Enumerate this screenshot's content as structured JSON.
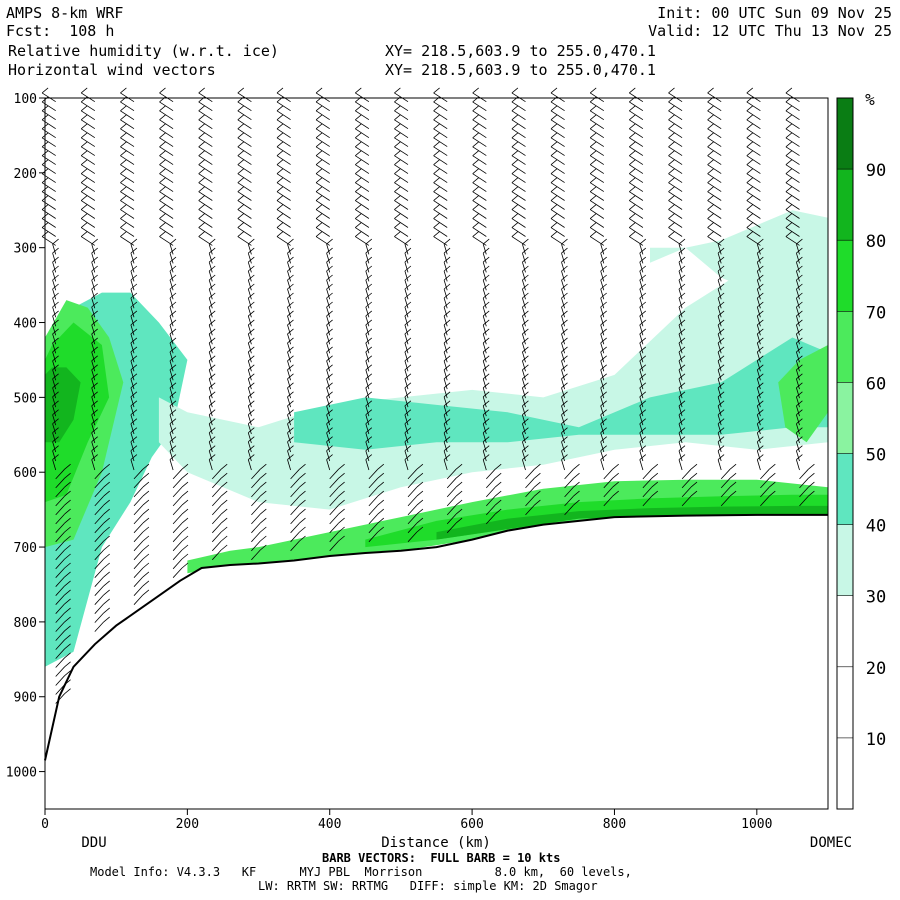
{
  "header": {
    "model": "AMPS 8-km WRF",
    "fcst": "Fcst:  108 h",
    "init": "Init: 00 UTC Sun 09 Nov 25",
    "valid": "Valid: 12 UTC Thu 13 Nov 25",
    "field1": "Relative humidity (w.r.t. ice)",
    "field2": "Horizontal wind vectors",
    "xy1": "XY= 218.5,603.9 to 255.0,470.1",
    "xy2": "XY= 218.5,603.9 to 255.0,470.1"
  },
  "footer": {
    "barb_note": "BARB VECTORS:  FULL BARB = 10 kts",
    "model_info": "Model Info: V4.3.3   KF      MYJ PBL  Morrison          8.0 km,  60 levels,",
    "model_info2": "LW: RRTM SW: RRTMG   DIFF: simple KM: 2D Smagor"
  },
  "colors": {
    "rh_30_40": "#c8f7e6",
    "rh_40_50": "#5fe6bf",
    "rh_50_60": "#8af3a0",
    "rh_60_70": "#4cea5c",
    "rh_70_80": "#1fdc2a",
    "rh_80_90": "#12b51e",
    "rh_90_100": "#0a7d14",
    "terrain_line": "#000000"
  },
  "chart_data": {
    "type": "heatmap",
    "title": "Relative humidity (w.r.t. ice)",
    "xlabel": "Distance (km)",
    "ylabel": "",
    "xlim": [
      0,
      1100
    ],
    "ylim": [
      1050,
      100
    ],
    "x_ticks": [
      0,
      200,
      400,
      600,
      800,
      1000
    ],
    "y_ticks": [
      100,
      200,
      300,
      400,
      500,
      600,
      700,
      800,
      900,
      1000
    ],
    "x_endpoints": {
      "left": "DDU",
      "right": "DOMEC"
    },
    "colorbar": {
      "unit": "%",
      "ticks": [
        10,
        20,
        30,
        40,
        50,
        60,
        70,
        80,
        90
      ],
      "levels": [
        0,
        10,
        20,
        30,
        40,
        50,
        60,
        70,
        80,
        90,
        100
      ]
    },
    "terrain_surface": {
      "x": [
        0,
        20,
        40,
        70,
        100,
        130,
        160,
        190,
        220,
        260,
        300,
        350,
        400,
        450,
        500,
        550,
        600,
        650,
        700,
        800,
        900,
        1000,
        1100
      ],
      "pressure": [
        985,
        900,
        860,
        830,
        805,
        785,
        765,
        745,
        728,
        724,
        722,
        718,
        712,
        708,
        705,
        700,
        690,
        678,
        670,
        660,
        658,
        657,
        657
      ]
    },
    "rh_regions": [
      {
        "level": "40-50",
        "x": [
          0,
          0,
          40,
          80,
          120,
          150,
          180,
          200,
          160,
          120,
          80,
          40,
          0
        ],
        "p": [
          440,
          860,
          840,
          700,
          640,
          580,
          540,
          450,
          400,
          360,
          360,
          380,
          440
        ]
      },
      {
        "level": "60-70",
        "x": [
          0,
          0,
          40,
          80,
          110,
          90,
          60,
          30,
          0
        ],
        "p": [
          420,
          700,
          690,
          600,
          480,
          420,
          380,
          370,
          420
        ]
      },
      {
        "level": "70-80",
        "x": [
          0,
          0,
          30,
          60,
          90,
          80,
          40,
          10
        ],
        "p": [
          450,
          640,
          630,
          560,
          500,
          430,
          400,
          430
        ]
      },
      {
        "level": "80-90",
        "x": [
          0,
          0,
          20,
          40,
          50,
          30,
          10
        ],
        "p": [
          470,
          560,
          560,
          530,
          480,
          460,
          460
        ]
      },
      {
        "level": "30-40",
        "x": [
          160,
          200,
          300,
          400,
          500,
          600,
          700,
          800,
          900,
          1000,
          1100,
          1100,
          1000,
          900,
          800,
          700,
          600,
          500,
          400,
          300,
          200,
          160
        ],
        "p": [
          560,
          600,
          640,
          650,
          620,
          600,
          590,
          570,
          560,
          570,
          560,
          360,
          320,
          380,
          470,
          500,
          490,
          500,
          510,
          540,
          520,
          500
        ]
      },
      {
        "level": "40-50",
        "x": [
          350,
          450,
          550,
          650,
          750,
          850,
          950,
          1050,
          1100,
          1100,
          1050,
          950,
          850,
          750,
          650,
          550,
          450,
          350
        ],
        "p": [
          560,
          570,
          560,
          560,
          550,
          550,
          550,
          540,
          540,
          440,
          420,
          480,
          500,
          540,
          520,
          510,
          500,
          520
        ]
      },
      {
        "level": "60-70",
        "x": [
          200,
          260,
          300,
          400,
          500,
          600,
          700,
          800,
          900,
          1000,
          1100,
          1100,
          1000,
          900,
          800,
          700,
          600,
          500,
          400,
          300,
          260,
          200
        ],
        "p": [
          735,
          724,
          722,
          712,
          705,
          690,
          670,
          660,
          658,
          657,
          657,
          620,
          610,
          610,
          612,
          622,
          640,
          660,
          680,
          700,
          705,
          718
        ]
      },
      {
        "level": "70-80",
        "x": [
          450,
          550,
          650,
          750,
          850,
          950,
          1050,
          1100,
          1100,
          1050,
          950,
          850,
          750,
          650,
          550,
          450
        ],
        "p": [
          700,
          690,
          676,
          662,
          659,
          658,
          657,
          657,
          630,
          630,
          632,
          635,
          640,
          650,
          665,
          690
        ]
      },
      {
        "level": "80-90",
        "x": [
          550,
          650,
          750,
          850,
          950,
          1050,
          1100,
          1100,
          1050,
          950,
          850,
          750,
          650,
          550
        ],
        "p": [
          690,
          676,
          662,
          659,
          658,
          657,
          657,
          645,
          645,
          646,
          648,
          652,
          662,
          680
        ]
      },
      {
        "level": "30-40",
        "x": [
          850,
          900,
          950,
          1000,
          1050,
          1100,
          1100,
          1050,
          1000,
          950,
          900,
          850
        ],
        "p": [
          320,
          300,
          340,
          360,
          380,
          380,
          260,
          250,
          270,
          290,
          300,
          300
        ]
      },
      {
        "level": "60-70",
        "x": [
          1030,
          1060,
          1100,
          1100,
          1070,
          1040
        ],
        "p": [
          480,
          450,
          430,
          520,
          560,
          540
        ]
      }
    ]
  }
}
